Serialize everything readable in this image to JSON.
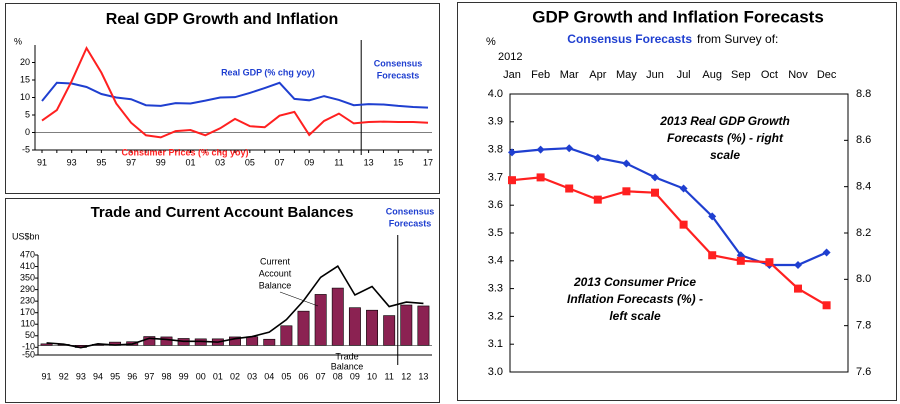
{
  "chart_data": [
    {
      "type": "line",
      "title": "Real GDP Growth and Inflation",
      "y_label": "%",
      "categories": [
        "91",
        null,
        "93",
        null,
        "95",
        null,
        "97",
        null,
        "99",
        null,
        "01",
        null,
        "03",
        null,
        "05",
        null,
        "07",
        null,
        "09",
        null,
        "11",
        null,
        "13",
        null,
        "15",
        null,
        "17"
      ],
      "ylim": [
        -5,
        25
      ],
      "yticks": [
        -5,
        0,
        5,
        10,
        15,
        20
      ],
      "series": [
        {
          "name": "Real GDP (% chg yoy)",
          "color": "#1f3fd0",
          "values": [
            9,
            14.2,
            14,
            13,
            11,
            10,
            9.5,
            7.8,
            7.6,
            8.4,
            8.3,
            9.1,
            10,
            10.1,
            11.3,
            12.7,
            14.2,
            9.6,
            9.2,
            10.4,
            9.3,
            7.8,
            8.1,
            8,
            7.6,
            7.3,
            7.1
          ]
        },
        {
          "name": "Consumer Prices (% chg yoy)",
          "color": "#ff2020",
          "values": [
            3.4,
            6.4,
            14.7,
            24.1,
            17.1,
            8.3,
            2.8,
            -0.8,
            -1.4,
            0.4,
            0.7,
            -0.8,
            1.2,
            3.9,
            1.8,
            1.5,
            4.8,
            5.9,
            -0.7,
            3.3,
            5.4,
            2.6,
            3,
            3.1,
            3,
            3,
            2.8
          ]
        }
      ],
      "annotation": [
        "Consensus",
        "Forecasts"
      ]
    },
    {
      "type": "bar_line",
      "title": "Trade and Current Account Balances",
      "y_label": "US$bn",
      "categories": [
        "91",
        "92",
        "93",
        "94",
        "95",
        "96",
        "97",
        "98",
        "99",
        "00",
        "01",
        "02",
        "03",
        "04",
        "05",
        "06",
        "07",
        "08",
        "09",
        "10",
        "11",
        "12",
        "13"
      ],
      "ylim": [
        -50,
        470
      ],
      "yticks": [
        -50,
        -10,
        50,
        110,
        170,
        230,
        290,
        350,
        410,
        470
      ],
      "series": [
        {
          "name": [
            "Trade",
            "Balance"
          ],
          "color": "#8b2252",
          "kind": "bar",
          "values": [
            8,
            5,
            -11,
            5,
            17,
            19,
            46,
            44,
            36,
            34,
            34,
            44,
            45,
            32,
            102,
            178,
            265,
            298,
            196,
            183,
            155,
            210,
            205
          ]
        },
        {
          "name": [
            "Current",
            "Account",
            "Balance"
          ],
          "color": "#000000",
          "kind": "line",
          "values": [
            13,
            6,
            -12,
            8,
            2,
            7,
            37,
            31,
            21,
            21,
            17,
            35,
            46,
            69,
            134,
            232,
            354,
            412,
            262,
            306,
            202,
            225,
            218
          ]
        }
      ],
      "annotation": [
        "Consensus",
        "Forecasts"
      ]
    },
    {
      "type": "dual_line",
      "title": "GDP Growth and Inflation Forecasts",
      "subtitle": [
        "Consensus Forecasts",
        "from Survey of:"
      ],
      "y_label": "%",
      "x_label": "2012",
      "categories": [
        "Jan",
        "Feb",
        "Mar",
        "Apr",
        "May",
        "Jun",
        "Jul",
        "Aug",
        "Sep",
        "Oct",
        "Nov",
        "Dec"
      ],
      "ylim": [
        3.0,
        4.0
      ],
      "yticks": [
        {
          "value": 3.0,
          "label": "3.0"
        },
        3.1,
        3.2,
        3.3,
        3.4,
        3.5,
        3.6,
        3.7,
        3.8,
        3.9,
        {
          "value": 4.0,
          "label": "4.0"
        }
      ],
      "y2lim": [
        7.6,
        8.8
      ],
      "y2ticks": [
        7.6,
        7.8,
        {
          "value": 8.0,
          "label": "8.0"
        },
        8.2,
        8.4,
        8.6,
        8.8
      ],
      "series": [
        {
          "name": [
            "2013 Real GDP Growth",
            "Forecasts (%) - right",
            "scale"
          ],
          "color": "#1f3fd0",
          "axis": "y2",
          "marker": "diamond",
          "values": [
            8.548,
            8.56,
            8.566,
            8.524,
            8.5,
            8.44,
            8.392,
            8.272,
            8.104,
            8.062,
            8.062,
            8.116
          ]
        },
        {
          "name": [
            "2013 Consumer Price",
            "Inflation Forecasts (%) -",
            "left scale"
          ],
          "color": "#ff2020",
          "axis": "y",
          "marker": "square",
          "values": [
            3.69,
            3.7,
            3.66,
            3.62,
            3.65,
            3.645,
            3.53,
            3.42,
            3.4,
            3.395,
            3.3,
            3.24
          ]
        }
      ]
    }
  ]
}
